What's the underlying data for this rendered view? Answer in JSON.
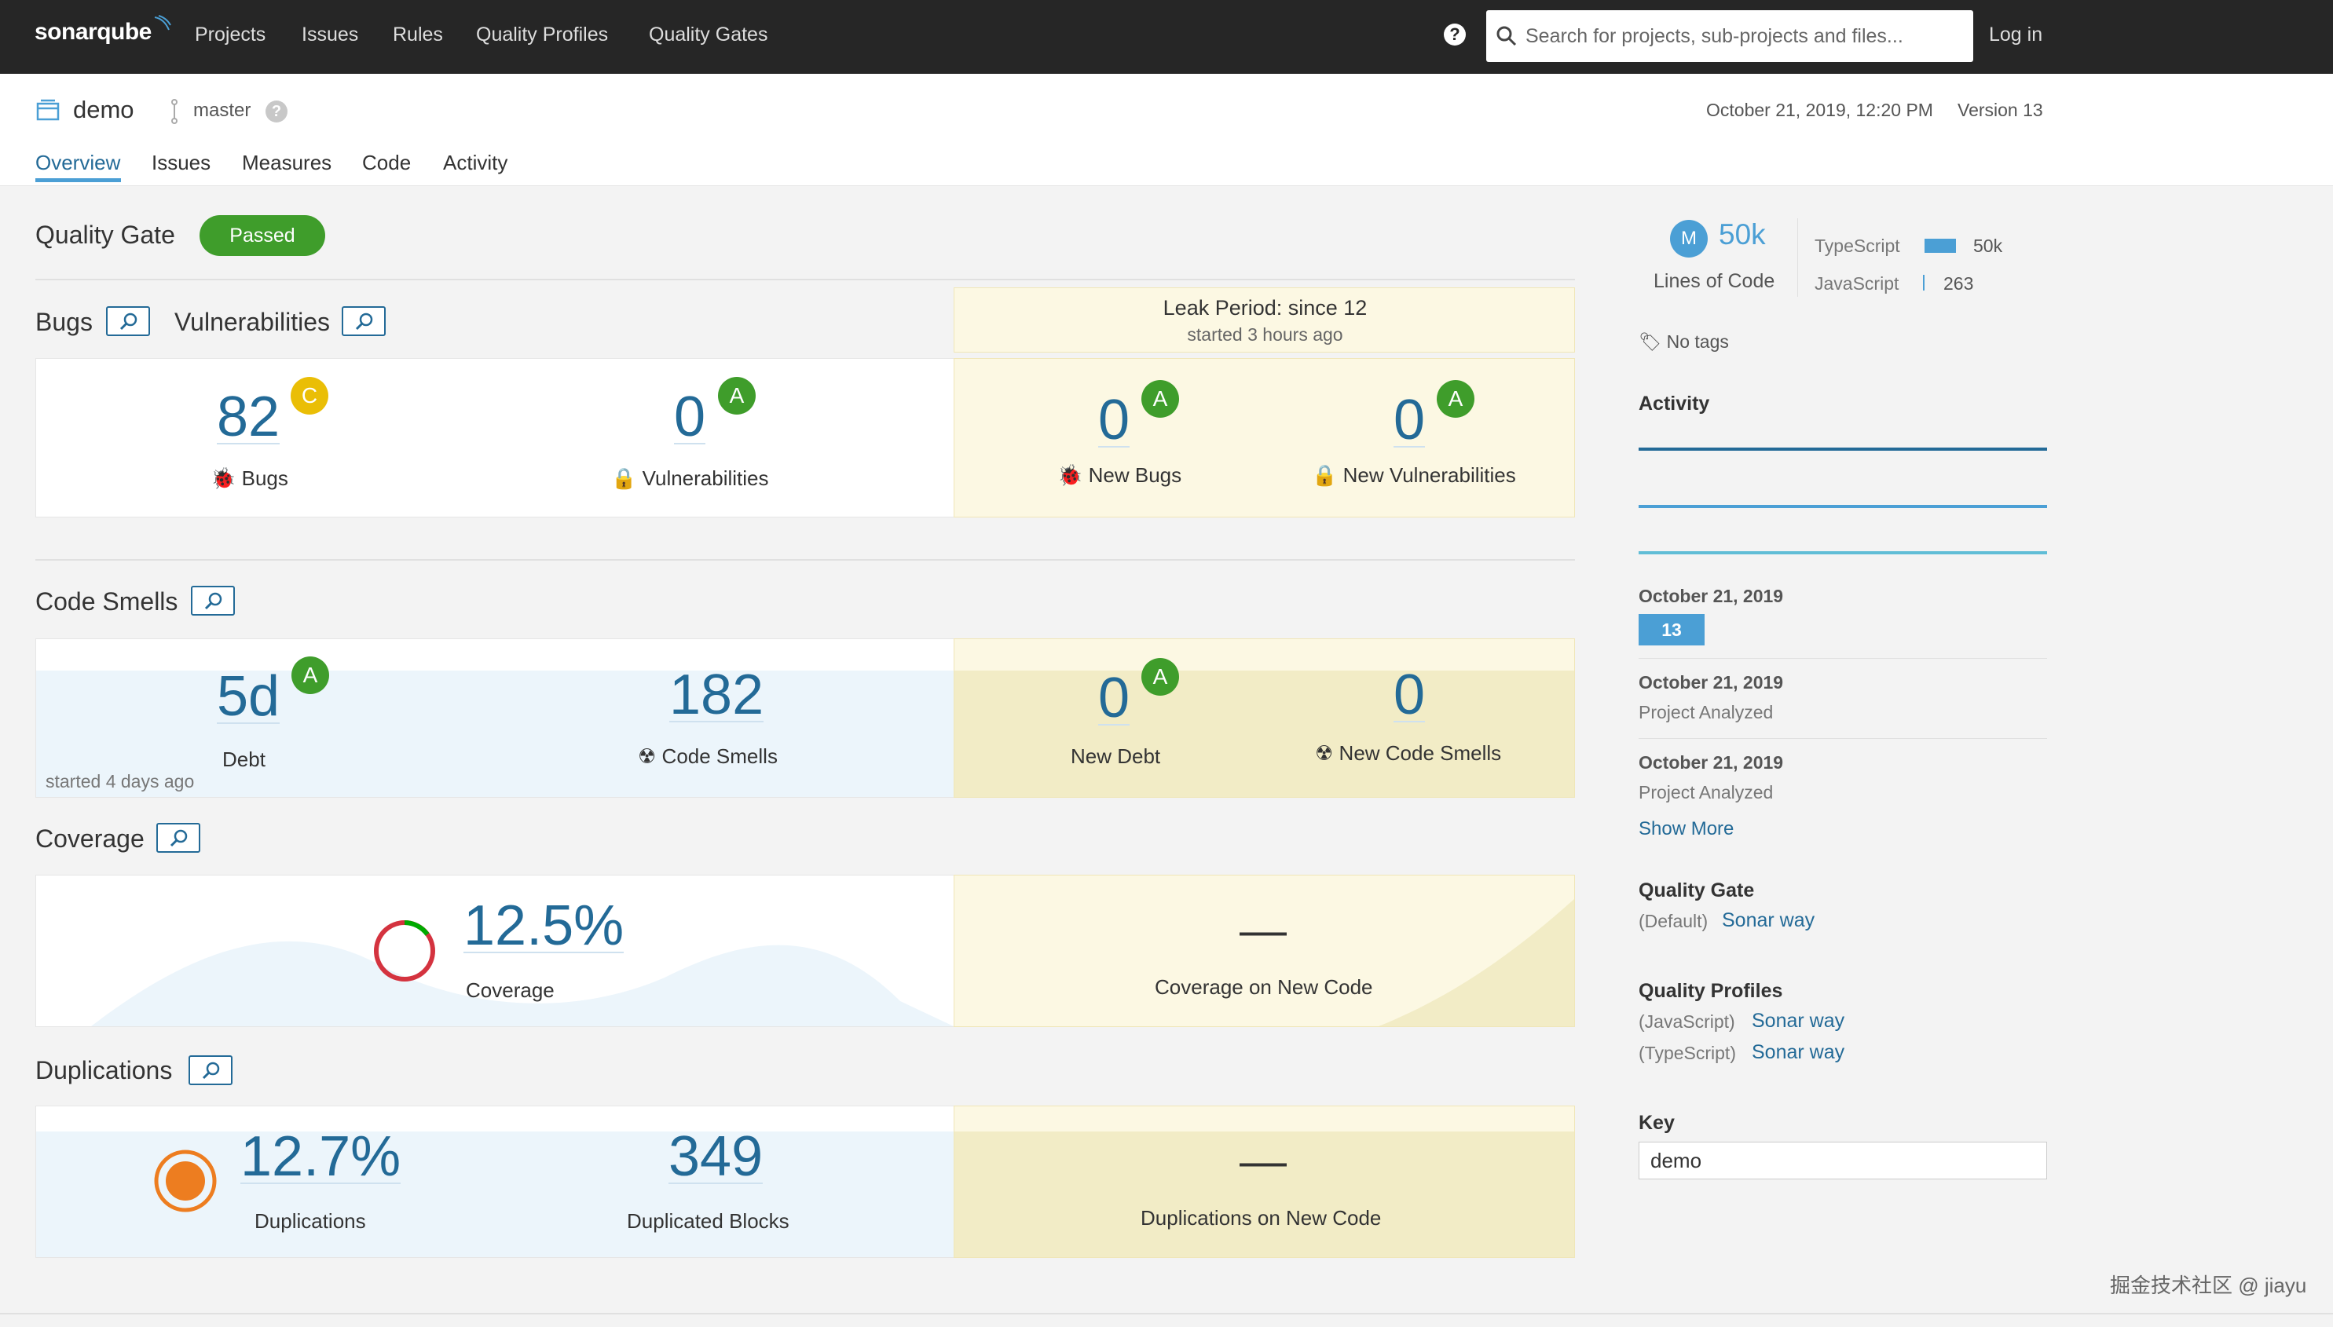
{
  "nav": {
    "logo": "sonarqube",
    "links": [
      "Projects",
      "Issues",
      "Rules",
      "Quality Profiles",
      "Quality Gates"
    ],
    "search_placeholder": "Search for projects, sub-projects and files...",
    "login": "Log in",
    "help": "?"
  },
  "project": {
    "name": "demo",
    "branch": "master",
    "analysis_date": "October 21, 2019, 12:20 PM",
    "version": "Version 13",
    "tabs": [
      "Overview",
      "Issues",
      "Measures",
      "Code",
      "Activity"
    ]
  },
  "quality_gate": {
    "title": "Quality Gate",
    "status": "Passed"
  },
  "leak": {
    "title": "Leak Period: since 12",
    "subtitle": "started 3 hours ago"
  },
  "bugs_section": {
    "bugs_title": "Bugs",
    "vuln_title": "Vulnerabilities",
    "bugs_value": "82",
    "bugs_rating": "C",
    "bugs_label": "Bugs",
    "vuln_value": "0",
    "vuln_rating": "A",
    "vuln_label": "Vulnerabilities",
    "new_bugs_value": "0",
    "new_bugs_rating": "A",
    "new_bugs_label": "New Bugs",
    "new_vuln_value": "0",
    "new_vuln_rating": "A",
    "new_vuln_label": "New Vulnerabilities"
  },
  "smells_section": {
    "title": "Code Smells",
    "debt_value": "5d",
    "debt_rating": "A",
    "debt_label": "Debt",
    "smells_value": "182",
    "smells_label": "Code Smells",
    "started": "started 4 days ago",
    "new_debt_value": "0",
    "new_debt_rating": "A",
    "new_debt_label": "New Debt",
    "new_smells_value": "0",
    "new_smells_label": "New Code Smells"
  },
  "coverage_section": {
    "title": "Coverage",
    "value": "12.5%",
    "label": "Coverage",
    "new_value": "—",
    "new_label": "Coverage on New Code"
  },
  "dup_section": {
    "title": "Duplications",
    "value": "12.7%",
    "label": "Duplications",
    "blocks_value": "349",
    "blocks_label": "Duplicated Blocks",
    "new_value": "—",
    "new_label": "Duplications on New Code"
  },
  "sidebar": {
    "avatar_letter": "M",
    "loc_value": "50k",
    "loc_label": "Lines of Code",
    "languages": [
      {
        "name": "TypeScript",
        "value": "50k"
      },
      {
        "name": "JavaScript",
        "value": "263"
      }
    ],
    "tags": "No tags",
    "activity_title": "Activity",
    "events": [
      {
        "date": "October 21, 2019",
        "version": "13"
      },
      {
        "date": "October 21, 2019",
        "text": "Project Analyzed"
      },
      {
        "date": "October 21, 2019",
        "text": "Project Analyzed"
      }
    ],
    "show_more": "Show More",
    "quality_gate_title": "Quality Gate",
    "quality_gate_default": "(Default)",
    "quality_gate_link": "Sonar way",
    "profiles_title": "Quality Profiles",
    "profiles": [
      {
        "lang": "(JavaScript)",
        "name": "Sonar way"
      },
      {
        "lang": "(TypeScript)",
        "name": "Sonar way"
      }
    ],
    "key_title": "Key",
    "key_value": "demo"
  },
  "watermark": "掘金技术社区 @ jiayu",
  "colors": {
    "navbar": "#262626",
    "accent": "#236a97",
    "passed": "#3f9d2b",
    "rating_c": "#eabe06",
    "leak_bg": "#fcf8e3"
  },
  "icons": [
    "search-icon",
    "help-icon",
    "project-icon",
    "branch-icon",
    "drilldown-icon",
    "bug-icon",
    "lock-icon",
    "code-smell-icon",
    "tag-icon"
  ]
}
